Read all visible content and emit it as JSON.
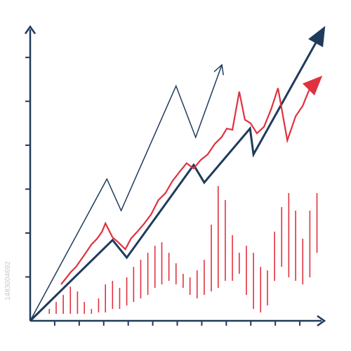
{
  "chart_data": {
    "type": "line",
    "watermark": "1483004692",
    "xlim": [
      0,
      12
    ],
    "ylim": [
      0,
      6.7
    ],
    "xticks": [
      1,
      2,
      3,
      4,
      5,
      6,
      7,
      8,
      9,
      10,
      11
    ],
    "yticks": [
      1,
      2,
      3,
      4,
      5,
      6
    ],
    "axis_color": "#1f3b5c",
    "series": [
      {
        "color": "#1f3b5c",
        "width": 3,
        "arrow": "filled",
        "x": [
          0,
          3.36,
          3.94,
          6.67,
          7.1,
          8.97,
          9.11,
          11.98
        ],
        "values": [
          0,
          1.84,
          1.44,
          3.55,
          3.15,
          4.38,
          3.79,
          6.66
        ]
      },
      {
        "color": "#1f3b5c",
        "width": 1.5,
        "arrow": "open",
        "x": [
          0,
          3.13,
          3.71,
          5.95,
          6.75,
          7.82
        ],
        "values": [
          0,
          3.23,
          2.51,
          5.35,
          4.18,
          5.83
        ]
      },
      {
        "color": "#e0313f",
        "width": 2.2,
        "arrow": "filled",
        "x": [
          1.26,
          1.49,
          1.64,
          1.87,
          2.07,
          2.27,
          2.5,
          2.73,
          2.93,
          3.07,
          3.36,
          3.59,
          3.88,
          4.11,
          4.37,
          4.66,
          4.94,
          5.23,
          5.52,
          5.8,
          6.09,
          6.38,
          6.67,
          6.95,
          7.24,
          7.53,
          7.82,
          8.02,
          8.25,
          8.53,
          8.76,
          8.99,
          9.25,
          9.54,
          9.83,
          10.11,
          10.49,
          10.83,
          11.12,
          11.41,
          11.84
        ],
        "values": [
          0.83,
          0.99,
          1.1,
          1.23,
          1.39,
          1.55,
          1.74,
          1.87,
          2.03,
          2.22,
          1.9,
          1.79,
          1.63,
          1.87,
          2.03,
          2.22,
          2.43,
          2.75,
          2.91,
          3.18,
          3.39,
          3.59,
          3.47,
          3.66,
          3.79,
          4.03,
          4.19,
          4.38,
          4.35,
          5.22,
          4.58,
          4.5,
          4.27,
          4.42,
          4.82,
          5.3,
          4.11,
          4.66,
          4.9,
          5.3,
          5.54
        ]
      }
    ],
    "ranges": {
      "color": "#e0313f",
      "x": [
        0.78,
        1.06,
        1.35,
        1.64,
        1.93,
        2.21,
        2.5,
        2.79,
        3.07,
        3.36,
        3.65,
        3.94,
        4.22,
        4.51,
        4.8,
        5.09,
        5.37,
        5.66,
        5.95,
        6.24,
        6.52,
        6.81,
        7.1,
        7.39,
        7.67,
        7.96,
        8.25,
        8.53,
        8.82,
        9.11,
        9.4,
        9.68,
        9.97,
        10.26,
        10.55,
        10.83,
        11.12,
        11.41,
        11.7
      ],
      "high": [
        0.27,
        0.43,
        0.59,
        0.78,
        0.67,
        0.43,
        0.27,
        0.51,
        0.83,
        0.91,
        0.75,
        0.99,
        1.23,
        1.39,
        1.55,
        1.71,
        1.79,
        1.55,
        1.31,
        1.07,
        0.99,
        1.15,
        1.39,
        2.19,
        3.07,
        2.75,
        1.95,
        1.55,
        1.71,
        1.55,
        1.23,
        1.15,
        2.03,
        2.59,
        2.91,
        2.51,
        1.87,
        2.51,
        2.91
      ],
      "low": [
        0.16,
        0.16,
        0.16,
        0.16,
        0.16,
        0.16,
        0.16,
        0.19,
        0.19,
        0.27,
        0.27,
        0.35,
        0.43,
        0.51,
        0.59,
        0.75,
        0.83,
        0.91,
        0.83,
        0.75,
        0.59,
        0.51,
        0.59,
        0.67,
        0.75,
        0.91,
        0.91,
        1.07,
        0.59,
        0.27,
        0.19,
        0.35,
        0.91,
        1.23,
        0.99,
        0.91,
        0.83,
        0.99,
        1.55
      ]
    }
  }
}
